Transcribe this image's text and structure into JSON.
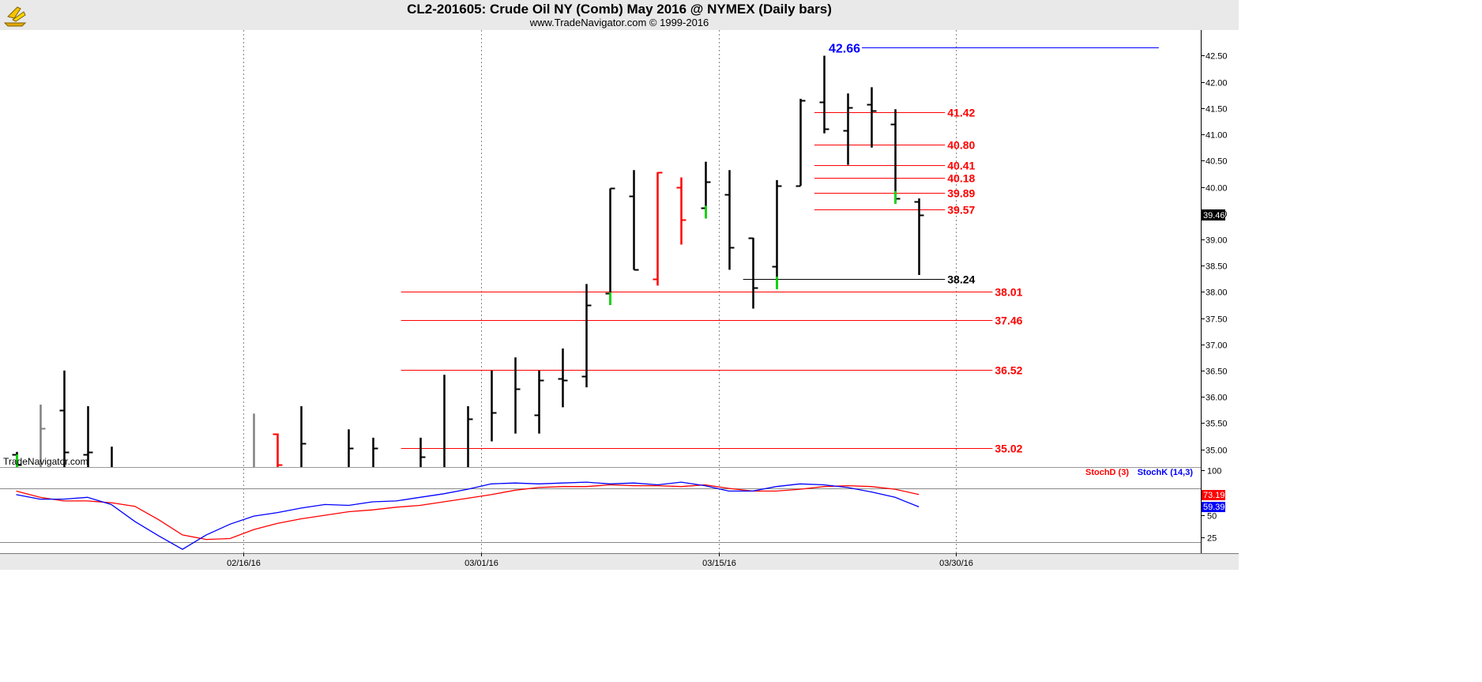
{
  "header": {
    "title": "CL2-201605:  Crude Oil NY (Comb) May 2016 @ NYMEX  (Daily bars)",
    "subtitle": "www.TradeNavigator.com © 1999-2016",
    "watermark": "TradeNavigator.com"
  },
  "colors": {
    "bar": "#000000",
    "bar_down_red": "#ff0000",
    "bar_gray": "#808080",
    "green_mark": "#00e000",
    "level_red": "#ff0000",
    "level_blue": "#0000ff",
    "stoch_d": "#ff0000",
    "stoch_k": "#0000ff"
  },
  "chart_data": [
    {
      "type": "ohlc",
      "title": "CL2-201605:  Crude Oil NY (Comb) May 2016 @ NYMEX  (Daily bars)",
      "ylim": [
        34.6,
        43.1
      ],
      "y_ticks": [
        "35.00",
        "35.50",
        "36.00",
        "36.50",
        "37.00",
        "37.50",
        "38.00",
        "38.50",
        "39.00",
        "39.50",
        "40.00",
        "40.50",
        "41.00",
        "41.50",
        "42.00",
        "42.50"
      ],
      "x_tick_labels": [
        {
          "slot": 10,
          "label": "02/16/16"
        },
        {
          "slot": 20,
          "label": "03/01/16"
        },
        {
          "slot": 30,
          "label": "03/15/16"
        },
        {
          "slot": 40,
          "label": "03/30/16"
        }
      ],
      "last_price": "39.46",
      "bars": [
        {
          "slot": 0,
          "o": 34.9,
          "h": 34.95,
          "l": 34.6,
          "c": 34.7,
          "green": true
        },
        {
          "slot": 1,
          "o": null,
          "h": 35.85,
          "l": 34.6,
          "c": 35.4,
          "gray": true
        },
        {
          "slot": 2,
          "o": 35.75,
          "h": 36.5,
          "l": 34.6,
          "c": 34.95
        },
        {
          "slot": 3,
          "o": 34.9,
          "h": 35.82,
          "l": 34.6,
          "c": 34.95
        },
        {
          "slot": 4,
          "o": null,
          "h": 35.05,
          "l": 34.6,
          "c": null
        },
        {
          "slot": 10,
          "o": null,
          "h": 35.68,
          "l": 34.6,
          "c": null,
          "gray": true
        },
        {
          "slot": 11,
          "o": 35.3,
          "h": 35.3,
          "l": 34.6,
          "c": 34.7,
          "red": true
        },
        {
          "slot": 12,
          "o": null,
          "h": 35.82,
          "l": 34.6,
          "c": 35.12
        },
        {
          "slot": 14,
          "o": null,
          "h": 35.38,
          "l": 34.6,
          "c": 35.02
        },
        {
          "slot": 15,
          "o": null,
          "h": 35.22,
          "l": 34.6,
          "c": 35.02
        },
        {
          "slot": 17,
          "o": null,
          "h": 35.22,
          "l": 34.6,
          "c": 34.85
        },
        {
          "slot": 18,
          "o": null,
          "h": 36.42,
          "l": 34.6,
          "c": null
        },
        {
          "slot": 19,
          "o": null,
          "h": 35.82,
          "l": 34.6,
          "c": 35.58
        },
        {
          "slot": 20,
          "o": null,
          "h": 36.5,
          "l": 35.15,
          "c": 35.7
        },
        {
          "slot": 21,
          "o": null,
          "h": 36.75,
          "l": 35.3,
          "c": 36.15
        },
        {
          "slot": 22,
          "o": 35.65,
          "h": 36.5,
          "l": 35.3,
          "c": 36.32
        },
        {
          "slot": 23,
          "o": 36.35,
          "h": 36.92,
          "l": 35.8,
          "c": 36.32
        },
        {
          "slot": 24,
          "o": 36.4,
          "h": 38.15,
          "l": 36.18,
          "c": 37.75
        },
        {
          "slot": 25,
          "o": 37.98,
          "h": 39.97,
          "l": 37.75,
          "c": 39.97,
          "green": true
        },
        {
          "slot": 26,
          "o": 39.82,
          "h": 40.32,
          "l": 38.42,
          "c": 38.42
        },
        {
          "slot": 27,
          "o": 38.25,
          "h": 40.28,
          "l": 38.12,
          "c": 40.28,
          "red": true
        },
        {
          "slot": 28,
          "o": 40.0,
          "h": 40.18,
          "l": 38.9,
          "c": 39.38,
          "red": true
        },
        {
          "slot": 29,
          "o": 39.6,
          "h": 40.48,
          "l": 39.4,
          "c": 40.1,
          "green": true
        },
        {
          "slot": 30,
          "o": 39.85,
          "h": 40.32,
          "l": 38.42,
          "c": 38.85
        },
        {
          "slot": 31,
          "o": 39.03,
          "h": 39.03,
          "l": 37.68,
          "c": 38.08
        },
        {
          "slot": 32,
          "o": 38.48,
          "h": 40.13,
          "l": 38.05,
          "c": 40.02,
          "green": true
        },
        {
          "slot": 33,
          "o": 40.02,
          "h": 41.68,
          "l": 40.02,
          "c": 41.65
        },
        {
          "slot": 34,
          "o": 41.62,
          "h": 42.5,
          "l": 41.02,
          "c": 41.1
        },
        {
          "slot": 35,
          "o": 41.08,
          "h": 41.78,
          "l": 40.42,
          "c": 41.52
        },
        {
          "slot": 36,
          "o": 41.58,
          "h": 41.9,
          "l": 40.75,
          "c": 41.45
        },
        {
          "slot": 37,
          "o": 41.2,
          "h": 41.48,
          "l": 39.68,
          "c": 39.78,
          "green": true
        },
        {
          "slot": 38,
          "o": 39.72,
          "h": 39.78,
          "l": 38.32,
          "c": 39.46
        }
      ],
      "levels": [
        {
          "label": "42.66",
          "value": 42.66,
          "color": "blue",
          "x_start_slot": 36,
          "x_end_slot": 48.5,
          "label_side": "left"
        },
        {
          "label": "41.42",
          "value": 41.42,
          "color": "red",
          "x_start_slot": 34,
          "x_end_slot": 39.5,
          "label_side": "right"
        },
        {
          "label": "40.80",
          "value": 40.8,
          "color": "red",
          "x_start_slot": 34,
          "x_end_slot": 39.5,
          "label_side": "right"
        },
        {
          "label": "40.41",
          "value": 40.41,
          "color": "red",
          "x_start_slot": 34,
          "x_end_slot": 39.5,
          "label_side": "right"
        },
        {
          "label": "40.18",
          "value": 40.18,
          "color": "red",
          "x_start_slot": 34,
          "x_end_slot": 39.5,
          "label_side": "right"
        },
        {
          "label": "39.89",
          "value": 39.89,
          "color": "red",
          "x_start_slot": 34,
          "x_end_slot": 39.5,
          "label_side": "right"
        },
        {
          "label": "39.57",
          "value": 39.57,
          "color": "red",
          "x_start_slot": 34,
          "x_end_slot": 39.5,
          "label_side": "right"
        },
        {
          "label": "38.24",
          "value": 38.24,
          "color": "black",
          "x_start_slot": 31,
          "x_end_slot": 39.5,
          "label_side": "right"
        },
        {
          "label": "38.01",
          "value": 38.01,
          "color": "red",
          "x_start_slot": 16.6,
          "x_end_slot": 41.5,
          "label_side": "right"
        },
        {
          "label": "37.46",
          "value": 37.46,
          "color": "red",
          "x_start_slot": 16.6,
          "x_end_slot": 41.5,
          "label_side": "right"
        },
        {
          "label": "36.52",
          "value": 36.52,
          "color": "red",
          "x_start_slot": 16.6,
          "x_end_slot": 41.5,
          "label_side": "right"
        },
        {
          "label": "35.02",
          "value": 35.02,
          "color": "red",
          "x_start_slot": 16.6,
          "x_end_slot": 41.5,
          "label_side": "right"
        }
      ]
    },
    {
      "type": "line",
      "title": "",
      "ylim": [
        10,
        100
      ],
      "y_ticks": [
        "25",
        "50",
        "75",
        "100"
      ],
      "ref_lines": [
        20,
        80
      ],
      "legend": [
        "StochD (3)",
        "StochK (14,3)"
      ],
      "last_values": {
        "StochD (3)": "73.19",
        "StochK (14,3)": "59.39"
      },
      "series": [
        {
          "name": "StochD (3)",
          "color": "red",
          "x": [
            0,
            1,
            2,
            3,
            4,
            5,
            6,
            7,
            8,
            9,
            10,
            11,
            12,
            13,
            14,
            15,
            16,
            17,
            18,
            19,
            20,
            21,
            22,
            23,
            24,
            25,
            26,
            27,
            28,
            29,
            30,
            31,
            32,
            33,
            34,
            35,
            36,
            37,
            38
          ],
          "y": [
            77,
            70,
            66,
            66,
            64,
            60,
            45,
            28,
            23,
            24,
            34,
            41,
            46,
            50,
            54,
            56,
            59,
            61,
            65,
            69,
            73,
            78,
            81,
            82,
            82,
            84,
            83,
            83,
            82,
            84,
            80,
            77,
            77,
            79,
            82,
            83,
            82,
            79,
            73.19
          ]
        },
        {
          "name": "StochK (14,3)",
          "color": "blue",
          "x": [
            0,
            1,
            2,
            3,
            4,
            5,
            6,
            7,
            8,
            9,
            10,
            11,
            12,
            13,
            14,
            15,
            16,
            17,
            18,
            19,
            20,
            21,
            22,
            23,
            24,
            25,
            26,
            27,
            28,
            29,
            30,
            31,
            32,
            33,
            34,
            35,
            36,
            37,
            38
          ],
          "y": [
            73,
            68,
            68,
            70,
            62,
            43,
            27,
            12,
            28,
            40,
            49,
            53,
            58,
            62,
            61,
            65,
            66,
            70,
            74,
            79,
            85,
            86,
            85,
            86,
            87,
            85,
            86,
            84,
            87,
            83,
            77,
            77,
            82,
            85,
            84,
            81,
            76,
            70,
            59.39
          ]
        }
      ]
    }
  ]
}
